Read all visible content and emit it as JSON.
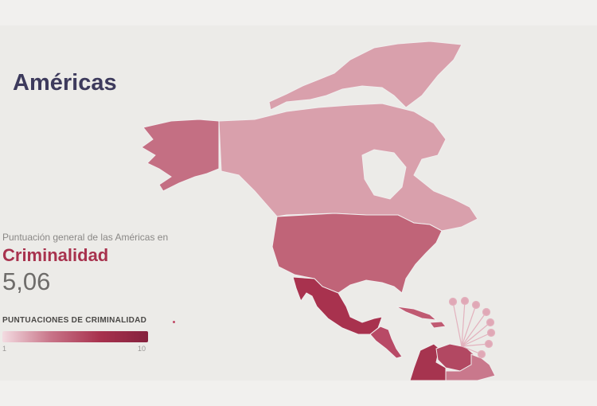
{
  "header": {
    "title": "Américas"
  },
  "summary": {
    "subtitle": "Puntuación general de las Américas en",
    "category": "Criminalidad",
    "score": "5,06"
  },
  "legend": {
    "title": "PUNTUACIONES DE CRIMINALIDAD",
    "min_label": "1",
    "max_label": "10",
    "color_low": "#f3dbe1",
    "color_high": "#85223e"
  },
  "map": {
    "colors": {
      "canada": "#d9a0ac",
      "greenland_arctic": "#d9a0ac",
      "alaska": "#c46f83",
      "usa": "#c06478",
      "mexico": "#a8324e",
      "central_america": "#b84a66",
      "caribbean": "#c05a72",
      "colombia": "#a6344f",
      "venezuela": "#b24862",
      "guianas": "#c9788c",
      "small_islands": "#e0a8b6"
    }
  }
}
